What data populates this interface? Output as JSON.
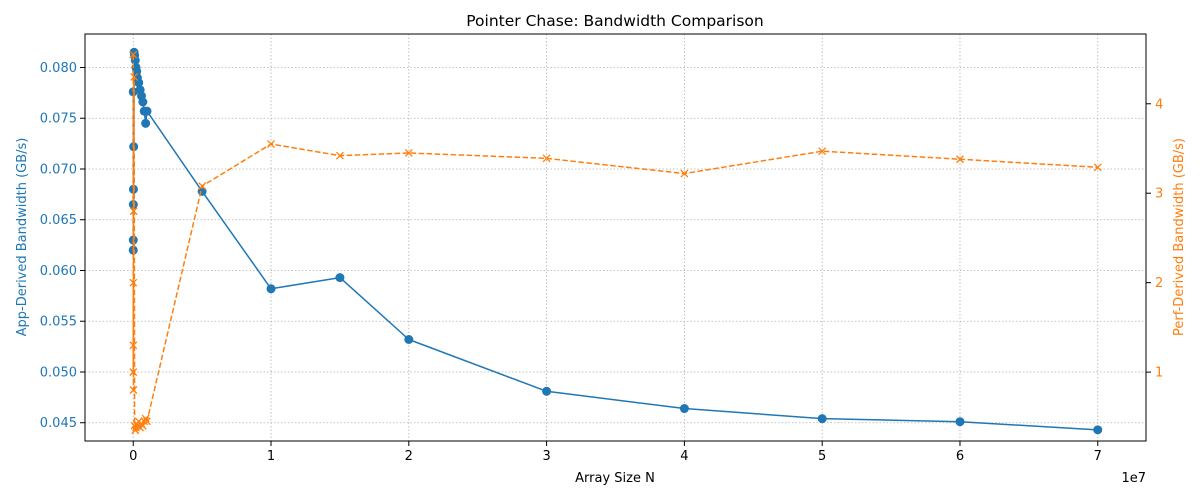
{
  "chart_data": {
    "type": "line",
    "title": "Pointer Chase: Bandwidth Comparison",
    "xlabel": "Array Size N",
    "ylabel_left": "App-Derived Bandwidth (GB/s)",
    "ylabel_right": "Perf-Derived Bandwidth (GB/s)",
    "x_offset_label": "1e7",
    "x_scale": 10000000,
    "xlim": [
      -3500000,
      73500000
    ],
    "ylim_left": [
      0.0432,
      0.0833
    ],
    "ylim_right": [
      0.23,
      4.78
    ],
    "grid": true,
    "x_ticks": [
      0,
      10000000,
      20000000,
      30000000,
      40000000,
      50000000,
      60000000,
      70000000
    ],
    "x_tick_labels": [
      "0",
      "1",
      "2",
      "3",
      "4",
      "5",
      "6",
      "7"
    ],
    "y_left_ticks": [
      0.045,
      0.05,
      0.055,
      0.06,
      0.065,
      0.07,
      0.075,
      0.08
    ],
    "y_left_tick_labels": [
      "0.045",
      "0.050",
      "0.055",
      "0.060",
      "0.065",
      "0.070",
      "0.075",
      "0.080"
    ],
    "y_right_ticks": [
      1,
      2,
      3,
      4
    ],
    "y_right_tick_labels": [
      "1",
      "2",
      "3",
      "4"
    ],
    "colors": {
      "app": "#1f77b4",
      "perf": "#ff7f0e",
      "grid": "#b0b0b0"
    },
    "series": [
      {
        "axis": "left",
        "style": "solid",
        "marker": "circle",
        "x": [
          1000,
          2000,
          4000,
          8000,
          16000,
          32000,
          64000,
          100000,
          150000,
          200000,
          250000,
          300000,
          400000,
          500000,
          600000,
          700000,
          800000,
          900000,
          1000000,
          5000000,
          10000000,
          15000000,
          20000000,
          30000000,
          40000000,
          50000000,
          60000000,
          70000000
        ],
        "values": [
          0.0776,
          0.062,
          0.063,
          0.0665,
          0.068,
          0.0722,
          0.0815,
          0.0812,
          0.0807,
          0.08,
          0.0796,
          0.079,
          0.0785,
          0.0778,
          0.0772,
          0.0766,
          0.0757,
          0.0745,
          0.0757,
          0.0678,
          0.0582,
          0.0593,
          0.0532,
          0.0481,
          0.0464,
          0.0454,
          0.0451,
          0.0443
        ]
      },
      {
        "axis": "right",
        "style": "dashed",
        "marker": "x",
        "x": [
          1000,
          2000,
          4000,
          8000,
          16000,
          32000,
          64000,
          100000,
          150000,
          200000,
          250000,
          300000,
          400000,
          500000,
          600000,
          700000,
          800000,
          900000,
          1000000,
          5000000,
          10000000,
          15000000,
          20000000,
          30000000,
          40000000,
          50000000,
          60000000,
          70000000
        ],
        "values": [
          4.55,
          1.0,
          2.0,
          1.3,
          0.8,
          2.8,
          4.3,
          0.4,
          0.35,
          0.38,
          0.42,
          0.4,
          0.45,
          0.38,
          0.42,
          0.4,
          0.45,
          0.48,
          0.45,
          3.08,
          3.55,
          3.42,
          3.45,
          3.39,
          3.22,
          3.47,
          3.38,
          3.29
        ]
      }
    ]
  }
}
